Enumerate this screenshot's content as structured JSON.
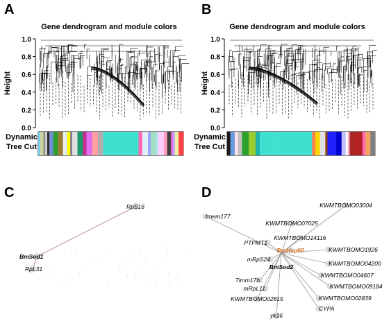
{
  "panels": {
    "A": {
      "letter": "A",
      "title": "Gene dendrogram and module colors",
      "ylabel": "Height",
      "yticks": [
        "1.0",
        "0.8",
        "0.6",
        "0.4",
        "0.2",
        "0.0"
      ],
      "colorbar_label_line1": "Dynamic",
      "colorbar_label_line2": "Tree Cut",
      "module_colors": [
        "#6ad1f0",
        "#d1d1a0",
        "#8a8a8a",
        "#e8e8e8",
        "#2f2f2f",
        "#6f8fd0",
        "#2ca02c",
        "#9b7b3a",
        "#f1f1f1",
        "#d8e8f0",
        "#ffff00",
        "#7a6c99",
        "#e0e0e0",
        "#1a9a6a",
        "#c03090",
        "#e070f0",
        "#ff9fa0",
        "#b0b0b0",
        "#40e0d0",
        "#40e0d0",
        "#ff69b4",
        "#e0f0ff",
        "#9fa0ff",
        "#a0e0c0",
        "#b0e0e6",
        "#ffd0ff",
        "#ffa0c0",
        "#404040",
        "#e060c0",
        "#c8a0ff",
        "#f0f0a0",
        "#ff4040"
      ]
    },
    "B": {
      "letter": "B",
      "title": "Gene dendrogram and module colors",
      "ylabel": "Height",
      "yticks": [
        "1.0",
        "0.8",
        "0.6",
        "0.4",
        "0.2",
        "0.0"
      ],
      "colorbar_label_line1": "Dynamic",
      "colorbar_label_line2": "Tree Cut",
      "module_colors": [
        "#1a1a1a",
        "#6a9ae0",
        "#ffe0e8",
        "#c0c0c0",
        "#2ca02c",
        "#9acd32",
        "#20b2aa",
        "#40e0d0",
        "#40e0d0",
        "#40e0d0",
        "#ff7f50",
        "#ffd700",
        "#e0e0e0",
        "#8b4513",
        "#2020ff",
        "#0000cd",
        "#c0c0ff",
        "#ffffff",
        "#ffb6c1",
        "#a52a2a",
        "#b22222",
        "#ff69b4",
        "#f4a460",
        "#808080"
      ]
    },
    "C": {
      "letter": "C",
      "nodes": [
        {
          "id": "RpS16",
          "label": "RpS16"
        },
        {
          "id": "BmSod1",
          "label": "BmSod1",
          "highlight": true
        },
        {
          "id": "RpL31",
          "label": "RpL31"
        }
      ],
      "edges": [
        [
          "BmSod1",
          "RpS16"
        ],
        [
          "BmSod1",
          "RpL31"
        ]
      ]
    },
    "D": {
      "letter": "D",
      "nodes": [
        {
          "id": "tmem177",
          "label": "tmem177"
        },
        {
          "id": "KWMTBOMO03004",
          "label": "KWMTBOMO03004"
        },
        {
          "id": "KWMTBOMO07025",
          "label": "KWMTBOMO07025"
        },
        {
          "id": "KWMTBOMO14116",
          "label": "KWMTBOMO14116"
        },
        {
          "id": "PTPMT1",
          "label": "PTPMT1"
        },
        {
          "id": "KWMTBOMO1926",
          "label": "KWMTBOMO1926"
        },
        {
          "id": "BmHsp60",
          "label": "BmHsp60",
          "accent": true
        },
        {
          "id": "KWMTBOMO04200",
          "label": "KWMTBOMO04200"
        },
        {
          "id": "mRpS24",
          "label": "mRpS24"
        },
        {
          "id": "BmSod2",
          "label": "BmSod2",
          "highlight": true
        },
        {
          "id": "KWMTBOMO04607",
          "label": "KWMTBOMO04607"
        },
        {
          "id": "Timm17b",
          "label": "Timm17b"
        },
        {
          "id": "mRpL11",
          "label": "mRpL11"
        },
        {
          "id": "KWMTBOMO09184",
          "label": "KWMTBOMO09184"
        },
        {
          "id": "KWMTBOMO02839",
          "label": "KWMTBOMO02839"
        },
        {
          "id": "KWMTBOMO02815",
          "label": "KWMTBOMO02815"
        },
        {
          "id": "CYPA",
          "label": "CYPA"
        },
        {
          "id": "yk16",
          "label": "yk16"
        }
      ],
      "hub": "BmSod2"
    }
  },
  "colors": {
    "edge": "#999999",
    "node": "#d9d9d9",
    "highlight_edge": "#c06070",
    "accent_label": "#d2691e"
  }
}
